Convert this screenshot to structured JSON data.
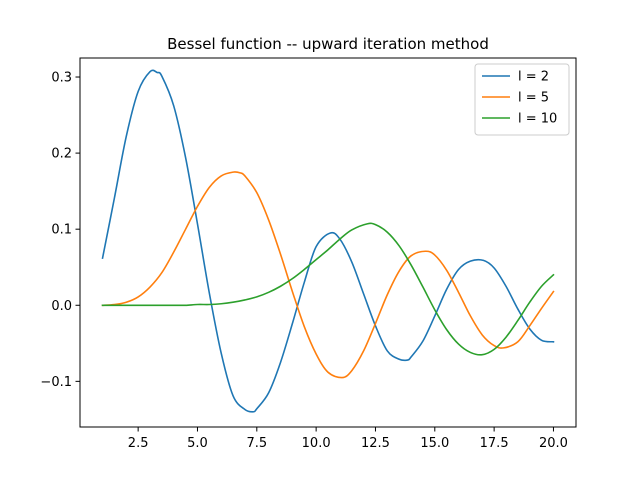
{
  "chart_data": {
    "type": "line",
    "title": "Bessel function -- upward iteration method",
    "xlabel": "",
    "ylabel": "",
    "xlim": [
      0.05,
      20.95
    ],
    "ylim": [
      -0.16,
      0.325
    ],
    "xticks": [
      2.5,
      5.0,
      7.5,
      10.0,
      12.5,
      15.0,
      17.5,
      20.0
    ],
    "xtick_labels": [
      "2.5",
      "5.0",
      "7.5",
      "10.0",
      "12.5",
      "15.0",
      "17.5",
      "20.0"
    ],
    "yticks": [
      -0.1,
      0.0,
      0.1,
      0.2,
      0.3
    ],
    "ytick_labels": [
      "−0.1",
      "0.0",
      "0.1",
      "0.2",
      "0.3"
    ],
    "grid": false,
    "legend_position": "top-right",
    "x_range": [
      1,
      20
    ],
    "series": [
      {
        "name": "l = 2",
        "color": "#1f77b4",
        "x": [
          1.0,
          1.5,
          2.0,
          2.5,
          3.0,
          3.3,
          3.5,
          4.0,
          4.5,
          5.0,
          5.5,
          6.0,
          6.5,
          7.0,
          7.35,
          7.5,
          8.0,
          8.5,
          9.0,
          9.5,
          10.0,
          10.6,
          11.0,
          11.5,
          12.0,
          12.5,
          13.0,
          13.5,
          13.85,
          14.0,
          14.5,
          15.0,
          15.5,
          16.0,
          16.5,
          17.05,
          17.5,
          18.0,
          18.5,
          19.0,
          19.5,
          20.0
        ],
        "values": [
          0.062,
          0.141,
          0.222,
          0.281,
          0.307,
          0.306,
          0.301,
          0.262,
          0.194,
          0.107,
          0.016,
          -0.063,
          -0.119,
          -0.137,
          -0.14,
          -0.136,
          -0.115,
          -0.075,
          -0.024,
          0.03,
          0.077,
          0.095,
          0.087,
          0.057,
          0.015,
          -0.027,
          -0.06,
          -0.071,
          -0.072,
          -0.068,
          -0.047,
          -0.014,
          0.021,
          0.047,
          0.058,
          0.059,
          0.049,
          0.025,
          -0.005,
          -0.031,
          -0.046,
          -0.048
        ]
      },
      {
        "name": "l = 5",
        "color": "#ff7f0e",
        "x": [
          1.0,
          1.5,
          2.0,
          2.5,
          3.0,
          3.5,
          4.0,
          4.5,
          5.0,
          5.5,
          6.0,
          6.5,
          6.8,
          7.0,
          7.5,
          8.0,
          8.5,
          9.0,
          9.5,
          10.0,
          10.5,
          11.1,
          11.5,
          12.0,
          12.5,
          13.0,
          13.5,
          14.0,
          14.6,
          15.0,
          15.5,
          16.0,
          16.5,
          17.0,
          17.5,
          17.9,
          18.5,
          19.0,
          19.5,
          20.0
        ],
        "values": [
          0.0,
          0.001,
          0.004,
          0.011,
          0.024,
          0.043,
          0.07,
          0.1,
          0.13,
          0.155,
          0.17,
          0.175,
          0.174,
          0.17,
          0.148,
          0.112,
          0.067,
          0.018,
          -0.028,
          -0.064,
          -0.088,
          -0.095,
          -0.086,
          -0.06,
          -0.024,
          0.014,
          0.045,
          0.065,
          0.071,
          0.066,
          0.046,
          0.017,
          -0.014,
          -0.039,
          -0.053,
          -0.056,
          -0.048,
          -0.027,
          -0.004,
          0.018
        ]
      },
      {
        "name": "l = 10",
        "color": "#2ca02c",
        "x": [
          1.0,
          2.0,
          3.0,
          4.0,
          4.5,
          5.0,
          5.5,
          6.0,
          6.5,
          7.0,
          7.5,
          8.0,
          8.5,
          9.0,
          9.5,
          10.0,
          10.5,
          11.0,
          11.5,
          12.15,
          12.5,
          13.0,
          13.5,
          14.0,
          14.5,
          15.0,
          15.5,
          16.0,
          16.5,
          17.0,
          17.5,
          18.0,
          18.5,
          19.0,
          19.5,
          20.0
        ],
        "values": [
          0.0,
          0.0,
          0.0,
          0.0,
          0.0,
          0.001,
          0.001,
          0.002,
          0.004,
          0.007,
          0.011,
          0.017,
          0.025,
          0.035,
          0.047,
          0.06,
          0.073,
          0.087,
          0.099,
          0.107,
          0.106,
          0.096,
          0.078,
          0.053,
          0.024,
          -0.006,
          -0.032,
          -0.051,
          -0.062,
          -0.065,
          -0.058,
          -0.042,
          -0.02,
          0.004,
          0.025,
          0.04
        ]
      }
    ]
  }
}
